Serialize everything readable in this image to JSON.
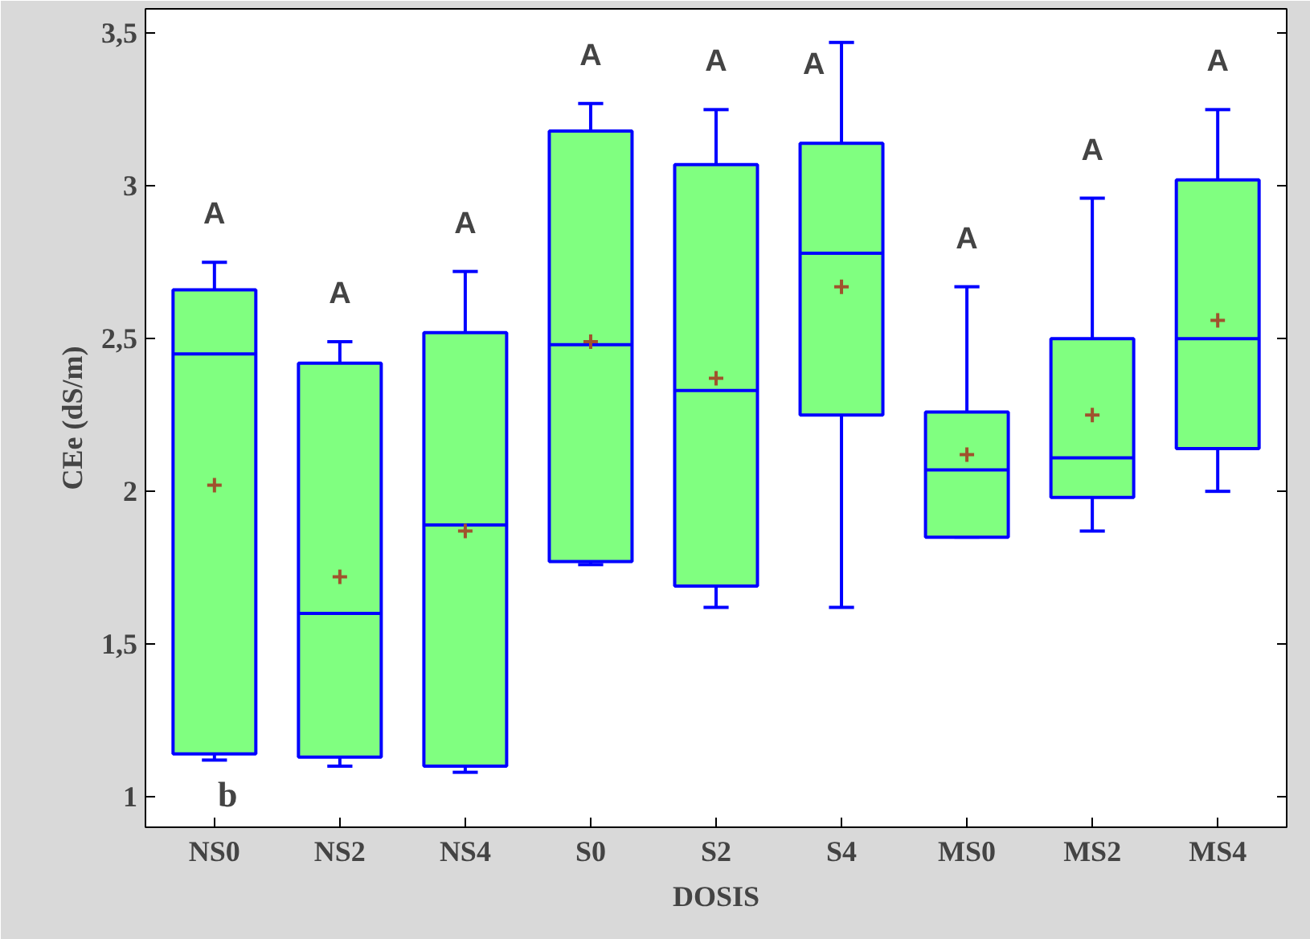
{
  "chart_data": {
    "type": "box",
    "xlabel": "DOSIS",
    "ylabel": "CEe (dS/m)",
    "categories": [
      "NS0",
      "NS2",
      "NS4",
      "S0",
      "S2",
      "S4",
      "MS0",
      "MS2",
      "MS4"
    ],
    "series": [
      {
        "color": "#80ff80",
        "boxes": [
          {
            "low": 1.12,
            "q1": 1.14,
            "median": 2.45,
            "q3": 2.66,
            "high": 2.75,
            "mean": 2.02
          },
          {
            "low": 1.1,
            "q1": 1.13,
            "median": 1.6,
            "q3": 2.42,
            "high": 2.49,
            "mean": 1.72
          },
          {
            "low": 1.08,
            "q1": 1.1,
            "median": 1.89,
            "q3": 2.52,
            "high": 2.72,
            "mean": 1.87
          },
          {
            "low": 1.76,
            "q1": 1.77,
            "median": 2.48,
            "q3": 3.18,
            "high": 3.27,
            "mean": 2.49
          },
          {
            "low": 1.62,
            "q1": 1.69,
            "median": 2.33,
            "q3": 3.07,
            "high": 3.25,
            "mean": 2.37
          },
          {
            "low": 1.62,
            "q1": 2.25,
            "median": 2.78,
            "q3": 3.14,
            "high": 3.47,
            "mean": 2.67
          },
          {
            "low": 1.85,
            "q1": 1.85,
            "median": 2.07,
            "q3": 2.26,
            "high": 2.67,
            "mean": 2.12
          },
          {
            "low": 1.87,
            "q1": 1.98,
            "median": 2.11,
            "q3": 2.5,
            "high": 2.96,
            "mean": 2.25
          },
          {
            "low": 2.0,
            "q1": 2.14,
            "median": 2.5,
            "q3": 3.02,
            "high": 3.25,
            "mean": 2.56
          }
        ]
      }
    ],
    "ylim": [
      0.9,
      3.58
    ],
    "yticks": [
      {
        "value": 1,
        "label": "1"
      },
      {
        "value": 1.5,
        "label": "1,5"
      },
      {
        "value": 2,
        "label": "2"
      },
      {
        "value": 2.5,
        "label": "2,5"
      },
      {
        "value": 3,
        "label": "3"
      },
      {
        "value": 3.5,
        "label": "3,5"
      }
    ],
    "grid": false,
    "annotations": [
      "A",
      "A",
      "A",
      "A",
      "A",
      "A",
      "A",
      "A",
      "A",
      "b"
    ]
  }
}
